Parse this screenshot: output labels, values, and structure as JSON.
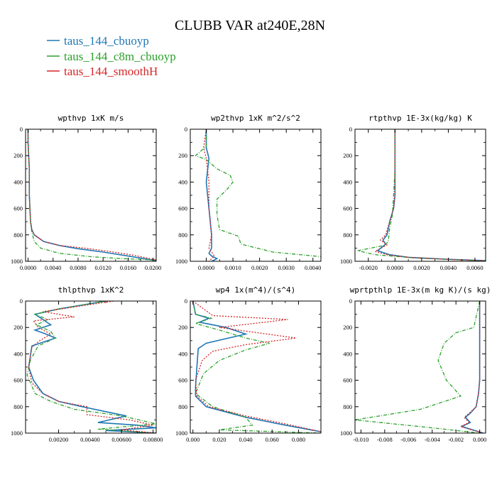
{
  "figure_title": "CLUBB VAR at240E,28N",
  "legend": [
    {
      "label": "taus_144_cbuoyp",
      "color": "#1f77b4"
    },
    {
      "label": "taus_144_c8m_cbuoyp",
      "color": "#2ca02c"
    },
    {
      "label": "taus_144_smoothH",
      "color": "#d62728"
    }
  ],
  "chart_data": [
    {
      "type": "line",
      "title": "wpthvp  1xK m/s",
      "xlim": [
        -0.0004,
        0.0205
      ],
      "ylim": [
        1000,
        0
      ],
      "xticks": [
        0.0,
        0.004,
        0.008,
        0.012,
        0.016,
        0.02
      ],
      "xtick_labels": [
        "0.0000",
        "0.0040",
        "0.0080",
        "0.0120",
        "0.0160",
        "0.0200"
      ],
      "yticks": [
        0,
        200,
        400,
        600,
        800,
        1000
      ],
      "ytick_labels": [
        "0",
        "200",
        "400",
        "600",
        "800",
        "1000"
      ],
      "series": [
        {
          "name": "taus_144_cbuoyp",
          "x": [
            0.0,
            0.0,
            0.0002,
            0.0002,
            0.0004,
            0.0006,
            0.001,
            0.0025,
            0.005,
            0.008,
            0.012,
            0.016,
            0.0205
          ],
          "y": [
            0,
            100,
            300,
            500,
            700,
            760,
            800,
            850,
            880,
            905,
            930,
            960,
            995
          ]
        },
        {
          "name": "taus_144_c8m_cbuoyp",
          "x": [
            0.0,
            0.0,
            0.0002,
            0.0002,
            0.0004,
            0.0006,
            0.001,
            0.002,
            0.005,
            0.01,
            0.015,
            0.0205
          ],
          "y": [
            0,
            100,
            300,
            500,
            700,
            780,
            850,
            900,
            940,
            965,
            980,
            990
          ]
        },
        {
          "name": "taus_144_smoothH",
          "x": [
            0.0,
            0.0,
            0.0002,
            0.0002,
            0.0004,
            0.0006,
            0.001,
            0.0025,
            0.005,
            0.009,
            0.013,
            0.017,
            0.0205
          ],
          "y": [
            0,
            100,
            300,
            500,
            700,
            760,
            800,
            850,
            880,
            900,
            925,
            955,
            990
          ]
        }
      ]
    },
    {
      "type": "line",
      "title": "wp2thvp  1xK m^2/s^2",
      "xlim": [
        -0.0006,
        0.0043
      ],
      "ylim": [
        1000,
        0
      ],
      "xticks": [
        0.0,
        0.001,
        0.002,
        0.003,
        0.004
      ],
      "xtick_labels": [
        "0.0000",
        "0.0010",
        "0.0020",
        "0.0030",
        "0.0040"
      ],
      "yticks": [
        0,
        200,
        400,
        600,
        800,
        1000
      ],
      "ytick_labels": [
        "0",
        "200",
        "400",
        "600",
        "800",
        "1000"
      ],
      "series": [
        {
          "name": "taus_144_cbuoyp",
          "x": [
            0.0,
            0.0,
            0.0001,
            0.0,
            0.0001,
            0.0002,
            0.0002,
            0.0001,
            0.0002,
            0.0004,
            0.0002
          ],
          "y": [
            0,
            140,
            220,
            400,
            600,
            800,
            900,
            940,
            960,
            980,
            1000
          ]
        },
        {
          "name": "taus_144_c8m_cbuoyp",
          "x": [
            0.0,
            0.0,
            -0.0004,
            0.0,
            0.0004,
            0.0009,
            0.001,
            0.0008,
            0.0004,
            0.0004,
            0.0005,
            0.0012,
            0.0013,
            0.0025,
            0.0043
          ],
          "y": [
            0,
            130,
            200,
            230,
            300,
            350,
            400,
            450,
            530,
            650,
            760,
            810,
            870,
            930,
            965
          ]
        },
        {
          "name": "taus_144_smoothH",
          "x": [
            0.0,
            -0.0001,
            0.0,
            0.0001,
            0.0001,
            0.0002,
            0.0001,
            0.0003,
            0.0001
          ],
          "y": [
            0,
            140,
            220,
            400,
            600,
            800,
            900,
            960,
            1000
          ]
        }
      ]
    },
    {
      "type": "line",
      "title": "rtpthvp  1E-3x(kg/kg) K",
      "xlim": [
        -0.003,
        0.0068
      ],
      "ylim": [
        1000,
        0
      ],
      "xticks": [
        -0.002,
        0.0,
        0.002,
        0.004,
        0.006
      ],
      "xtick_labels": [
        "-0.0020",
        "0.0000",
        "0.0020",
        "0.0040",
        "0.0060"
      ],
      "yticks": [
        0,
        200,
        400,
        600,
        800,
        1000
      ],
      "ytick_labels": [
        "0",
        "200",
        "400",
        "600",
        "800",
        "1000"
      ],
      "series": [
        {
          "name": "taus_144_cbuoyp",
          "x": [
            0.0,
            0.0,
            0.0,
            -0.0001,
            -0.0004,
            -0.0006,
            -0.0009,
            -0.0007,
            -0.0013,
            -0.0004,
            0.001,
            0.004,
            0.0068
          ],
          "y": [
            0,
            300,
            500,
            600,
            700,
            800,
            840,
            870,
            920,
            950,
            970,
            985,
            995
          ]
        },
        {
          "name": "taus_144_c8m_cbuoyp",
          "x": [
            0.0,
            0.0,
            -0.0001,
            -0.0002,
            -0.0004,
            -0.0005,
            -0.0008,
            -0.0028,
            -0.0015,
            0.0015,
            0.005,
            0.0068
          ],
          "y": [
            0,
            300,
            500,
            650,
            750,
            850,
            880,
            920,
            950,
            975,
            990,
            998
          ]
        },
        {
          "name": "taus_144_smoothH",
          "x": [
            0.0,
            0.0,
            0.0,
            -0.0001,
            -0.0004,
            -0.0007,
            -0.0011,
            -0.0006,
            -0.0015,
            -0.0005,
            0.0012,
            0.0045,
            0.0068
          ],
          "y": [
            0,
            300,
            500,
            600,
            700,
            800,
            840,
            875,
            925,
            952,
            972,
            988,
            996
          ]
        }
      ]
    },
    {
      "type": "line",
      "title": "thlpthvp  1xK^2",
      "xlim": [
        -0.0001,
        0.0082
      ],
      "ylim": [
        1000,
        0
      ],
      "xticks": [
        0.002,
        0.004,
        0.006,
        0.008
      ],
      "xtick_labels": [
        "0.00200",
        "0.00400",
        "0.00600",
        "0.00800"
      ],
      "yticks": [
        0,
        200,
        400,
        600,
        800,
        1000
      ],
      "ytick_labels": [
        "0",
        "200",
        "400",
        "600",
        "800",
        "1000"
      ],
      "series": [
        {
          "name": "taus_144_cbuoyp",
          "x": [
            0.005,
            0.002,
            0.0005,
            0.001,
            0.0015,
            0.0005,
            0.0012,
            0.0018,
            0.0003,
            0.0001,
            0.0004,
            0.001,
            0.002,
            0.0035,
            0.0063,
            0.0045,
            0.007,
            0.0082,
            0.005,
            0.0082
          ],
          "y": [
            0,
            60,
            100,
            140,
            180,
            220,
            250,
            280,
            340,
            500,
            600,
            700,
            760,
            800,
            870,
            920,
            940,
            960,
            980,
            1000
          ]
        },
        {
          "name": "taus_144_c8m_cbuoyp",
          "x": [
            0.005,
            0.002,
            0.0005,
            0.0013,
            0.0006,
            0.0015,
            0.0018,
            0.0007,
            0.0002,
            0.0,
            0.0005,
            0.0015,
            0.003,
            0.006,
            0.0082,
            0.0045,
            0.0082
          ],
          "y": [
            0,
            60,
            100,
            140,
            180,
            230,
            280,
            340,
            450,
            560,
            700,
            760,
            820,
            870,
            930,
            970,
            1000
          ]
        },
        {
          "name": "taus_144_smoothH",
          "x": [
            0.0055,
            0.001,
            0.003,
            0.0004,
            0.0007,
            0.0015,
            0.0008,
            0.0003,
            0.0001,
            0.0003,
            0.001,
            0.002,
            0.0038,
            0.0038,
            0.0065,
            0.008,
            0.006,
            0.0082
          ],
          "y": [
            0,
            80,
            120,
            150,
            200,
            250,
            300,
            350,
            500,
            620,
            700,
            760,
            800,
            860,
            900,
            940,
            975,
            1000
          ]
        }
      ]
    },
    {
      "type": "line",
      "title": "wp4  1x(m^4)/(s^4)",
      "xlim": [
        -0.002,
        0.097
      ],
      "ylim": [
        1000,
        0
      ],
      "xticks": [
        0.0,
        0.02,
        0.04,
        0.06,
        0.08
      ],
      "xtick_labels": [
        "0.000",
        "0.020",
        "0.040",
        "0.060",
        "0.080"
      ],
      "yticks": [
        0,
        200,
        400,
        600,
        800,
        1000
      ],
      "ytick_labels": [
        "0",
        "200",
        "400",
        "600",
        "800",
        "1000"
      ],
      "series": [
        {
          "name": "taus_144_cbuoyp",
          "x": [
            0.0,
            0.002,
            0.012,
            0.005,
            0.025,
            0.04,
            0.01,
            0.004,
            0.003,
            0.002,
            0.002,
            0.01,
            0.04,
            0.07,
            0.097
          ],
          "y": [
            0,
            100,
            130,
            160,
            200,
            250,
            320,
            360,
            500,
            650,
            720,
            800,
            880,
            940,
            990
          ]
        },
        {
          "name": "taus_144_c8m_cbuoyp",
          "x": [
            0.0,
            0.002,
            0.014,
            0.002,
            0.02,
            0.04,
            0.058,
            0.04,
            0.02,
            0.008,
            0.002,
            0.015,
            0.04,
            0.045,
            0.02,
            0.097
          ],
          "y": [
            0,
            100,
            130,
            170,
            220,
            280,
            320,
            370,
            450,
            550,
            700,
            800,
            880,
            940,
            975,
            1000
          ]
        },
        {
          "name": "taus_144_smoothH",
          "x": [
            0.0,
            0.015,
            0.072,
            0.02,
            0.078,
            0.04,
            0.015,
            0.007,
            0.002,
            0.003,
            0.012,
            0.04,
            0.07,
            0.097
          ],
          "y": [
            0,
            110,
            140,
            200,
            280,
            330,
            380,
            450,
            600,
            720,
            800,
            870,
            930,
            990
          ]
        }
      ]
    },
    {
      "type": "line",
      "title": "wprtpthlp  1E-3x(m kg K)/(s kg)",
      "xlim": [
        -0.0105,
        0.0005
      ],
      "ylim": [
        1000,
        0
      ],
      "xticks": [
        -0.01,
        -0.008,
        -0.006,
        -0.004,
        -0.002,
        0.0
      ],
      "xtick_labels": [
        "-0.010",
        "-0.008",
        "-0.006",
        "-0.004",
        "-0.002",
        "0.000"
      ],
      "yticks": [
        0,
        200,
        400,
        600,
        800,
        1000
      ],
      "ytick_labels": [
        "0",
        "200",
        "400",
        "600",
        "800",
        "1000"
      ],
      "series": [
        {
          "name": "taus_144_cbuoyp",
          "x": [
            0.0,
            0.0,
            0.0,
            -0.0001,
            -0.0003,
            -0.0008,
            -0.0012,
            -0.0008,
            -0.0015,
            -0.0006,
            0.0003
          ],
          "y": [
            0,
            300,
            600,
            700,
            800,
            850,
            880,
            920,
            950,
            975,
            1000
          ]
        },
        {
          "name": "taus_144_c8m_cbuoyp",
          "x": [
            0.0,
            -0.0005,
            -0.002,
            -0.003,
            -0.0035,
            -0.0028,
            -0.0016,
            -0.005,
            -0.0105,
            -0.004,
            0.0
          ],
          "y": [
            0,
            200,
            240,
            320,
            450,
            600,
            720,
            820,
            900,
            960,
            1000
          ]
        },
        {
          "name": "taus_144_smoothH",
          "x": [
            0.0,
            0.0,
            0.0,
            -0.0001,
            -0.0003,
            -0.0009,
            -0.0013,
            -0.0009,
            -0.0016,
            -0.0007,
            0.0003
          ],
          "y": [
            0,
            300,
            600,
            700,
            800,
            850,
            880,
            920,
            950,
            975,
            1000
          ]
        }
      ]
    }
  ]
}
